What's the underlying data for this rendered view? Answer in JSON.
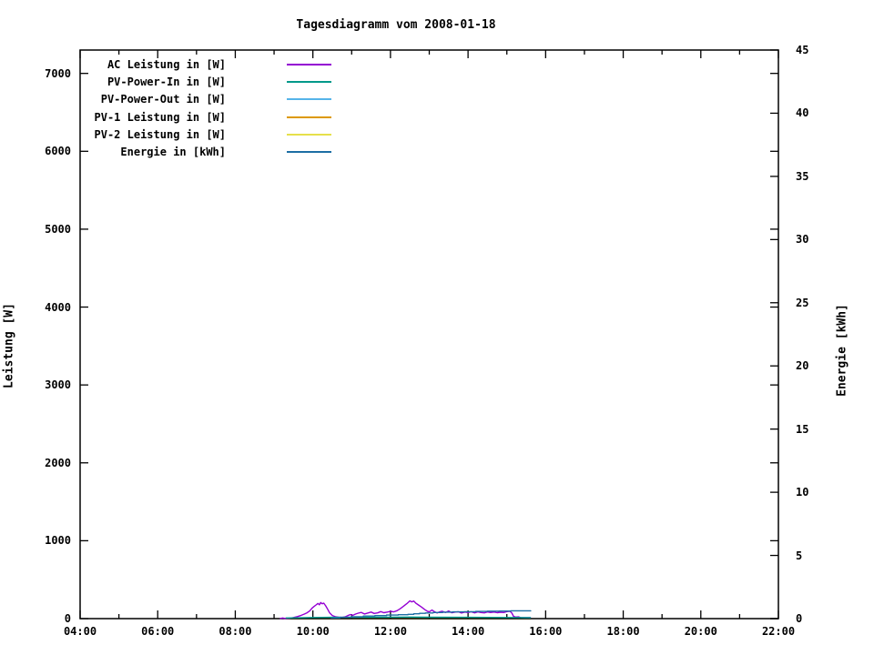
{
  "title": "Tagesdiagramm vom 2008-01-18",
  "chart_data": {
    "type": "line",
    "title": "Tagesdiagramm vom 2008-01-18",
    "background": "#ffffff",
    "grid": false,
    "legend_position": "top-left-inside",
    "x": {
      "min_hour": 4,
      "max_hour": 22,
      "major_ticks": [
        [
          4,
          "04:00"
        ],
        [
          6,
          "06:00"
        ],
        [
          8,
          "08:00"
        ],
        [
          10,
          "10:00"
        ],
        [
          12,
          "12:00"
        ],
        [
          14,
          "14:00"
        ],
        [
          16,
          "16:00"
        ],
        [
          18,
          "18:00"
        ],
        [
          20,
          "20:00"
        ],
        [
          22,
          "22:00"
        ]
      ],
      "minor_tick_hours": [
        5,
        7,
        9,
        11,
        13,
        15,
        17,
        19,
        21
      ]
    },
    "y1": {
      "label": "Leistung [W]",
      "min": 0,
      "max": 7300,
      "ticks": [
        [
          0,
          "0"
        ],
        [
          1000,
          "1000"
        ],
        [
          2000,
          "2000"
        ],
        [
          3000,
          "3000"
        ],
        [
          4000,
          "4000"
        ],
        [
          5000,
          "5000"
        ],
        [
          6000,
          "6000"
        ],
        [
          7000,
          "7000"
        ]
      ],
      "mirror_ticks_on_right": true
    },
    "y2": {
      "label": "Energie [kWh]",
      "min": 0,
      "max": 45,
      "ticks": [
        [
          0,
          "0"
        ],
        [
          5,
          "5"
        ],
        [
          10,
          "10"
        ],
        [
          15,
          "15"
        ],
        [
          20,
          "20"
        ],
        [
          25,
          "25"
        ],
        [
          30,
          "30"
        ],
        [
          35,
          "35"
        ],
        [
          40,
          "40"
        ],
        [
          45,
          "45"
        ]
      ]
    },
    "series": [
      {
        "name": "AC Leistung in [W]",
        "color": "#9400d3",
        "axis": "y1",
        "style": "line",
        "points": [
          [
            9.15,
            0
          ],
          [
            9.22,
            8
          ],
          [
            9.28,
            2
          ],
          [
            9.4,
            5
          ],
          [
            9.5,
            14
          ],
          [
            9.6,
            26
          ],
          [
            9.7,
            42
          ],
          [
            9.78,
            58
          ],
          [
            9.85,
            75
          ],
          [
            9.92,
            100
          ],
          [
            9.98,
            135
          ],
          [
            10.03,
            155
          ],
          [
            10.08,
            175
          ],
          [
            10.13,
            195
          ],
          [
            10.17,
            178
          ],
          [
            10.2,
            207
          ],
          [
            10.24,
            190
          ],
          [
            10.28,
            198
          ],
          [
            10.33,
            165
          ],
          [
            10.38,
            120
          ],
          [
            10.43,
            75
          ],
          [
            10.5,
            40
          ],
          [
            10.58,
            25
          ],
          [
            10.67,
            18
          ],
          [
            10.75,
            15
          ],
          [
            10.83,
            22
          ],
          [
            10.9,
            38
          ],
          [
            10.97,
            52
          ],
          [
            11.03,
            42
          ],
          [
            11.1,
            58
          ],
          [
            11.17,
            70
          ],
          [
            11.25,
            80
          ],
          [
            11.33,
            60
          ],
          [
            11.42,
            72
          ],
          [
            11.5,
            84
          ],
          [
            11.58,
            66
          ],
          [
            11.67,
            74
          ],
          [
            11.75,
            90
          ],
          [
            11.83,
            76
          ],
          [
            11.92,
            84
          ],
          [
            12.0,
            94
          ],
          [
            12.08,
            86
          ],
          [
            12.17,
            102
          ],
          [
            12.25,
            126
          ],
          [
            12.33,
            156
          ],
          [
            12.42,
            192
          ],
          [
            12.5,
            228
          ],
          [
            12.55,
            215
          ],
          [
            12.6,
            225
          ],
          [
            12.65,
            200
          ],
          [
            12.72,
            175
          ],
          [
            12.8,
            148
          ],
          [
            12.88,
            118
          ],
          [
            12.95,
            95
          ],
          [
            13.0,
            86
          ],
          [
            13.07,
            110
          ],
          [
            13.13,
            90
          ],
          [
            13.2,
            72
          ],
          [
            13.27,
            88
          ],
          [
            13.33,
            95
          ],
          [
            13.42,
            78
          ],
          [
            13.5,
            98
          ],
          [
            13.58,
            76
          ],
          [
            13.67,
            84
          ],
          [
            13.75,
            88
          ],
          [
            13.83,
            72
          ],
          [
            13.92,
            84
          ],
          [
            14.0,
            78
          ],
          [
            14.08,
            88
          ],
          [
            14.17,
            74
          ],
          [
            14.25,
            86
          ],
          [
            14.33,
            78
          ],
          [
            14.42,
            74
          ],
          [
            14.5,
            85
          ],
          [
            14.58,
            78
          ],
          [
            14.67,
            84
          ],
          [
            14.75,
            76
          ],
          [
            14.83,
            82
          ],
          [
            14.92,
            78
          ],
          [
            15.0,
            90
          ],
          [
            15.08,
            95
          ],
          [
            15.13,
            70
          ],
          [
            15.17,
            30
          ],
          [
            15.22,
            20
          ],
          [
            15.3,
            22
          ],
          [
            15.35,
            14
          ],
          [
            15.45,
            13
          ],
          [
            15.55,
            13
          ],
          [
            15.62,
            12
          ]
        ]
      },
      {
        "name": "PV-Power-In in [W]",
        "color": "#00998a",
        "axis": "y1",
        "style": "line",
        "points": [
          [
            9.3,
            8
          ],
          [
            10.0,
            14
          ],
          [
            10.46,
            16
          ],
          [
            11.0,
            17
          ],
          [
            12.0,
            19
          ],
          [
            12.5,
            20
          ],
          [
            13.0,
            18
          ],
          [
            14.0,
            16
          ],
          [
            15.0,
            14
          ],
          [
            15.62,
            12
          ]
        ]
      },
      {
        "name": "PV-Power-Out in [W]",
        "color": "#56b4e9",
        "axis": "y1",
        "style": "line",
        "points": [
          [
            9.3,
            3
          ],
          [
            12.0,
            3
          ],
          [
            15.62,
            3
          ]
        ]
      },
      {
        "name": "PV-1 Leistung in [W]",
        "color": "#dd9900",
        "axis": "y1",
        "style": "line",
        "points": [
          [
            9.3,
            1
          ],
          [
            12.0,
            1
          ],
          [
            15.62,
            1
          ]
        ]
      },
      {
        "name": "PV-2 Leistung in [W]",
        "color": "#e6e04b",
        "axis": "y1",
        "style": "line",
        "points": [
          [
            9.3,
            0.5
          ],
          [
            12.0,
            0.5
          ],
          [
            15.62,
            0.5
          ]
        ]
      },
      {
        "name": "Energie in [kWh]",
        "color": "#1c6ea4",
        "axis": "y2",
        "style": "steps",
        "points": [
          [
            10.46,
            0.05
          ],
          [
            10.7,
            0.1
          ],
          [
            11.0,
            0.15
          ],
          [
            11.3,
            0.2
          ],
          [
            11.6,
            0.24
          ],
          [
            11.9,
            0.28
          ],
          [
            12.2,
            0.31
          ],
          [
            12.45,
            0.34
          ],
          [
            12.6,
            0.38
          ],
          [
            12.75,
            0.42
          ],
          [
            12.9,
            0.45
          ],
          [
            13.1,
            0.48
          ],
          [
            13.35,
            0.51
          ],
          [
            13.6,
            0.53
          ],
          [
            13.9,
            0.55
          ],
          [
            14.2,
            0.57
          ],
          [
            14.5,
            0.59
          ],
          [
            14.8,
            0.6
          ],
          [
            15.1,
            0.62
          ],
          [
            15.62,
            0.63
          ]
        ]
      }
    ]
  }
}
